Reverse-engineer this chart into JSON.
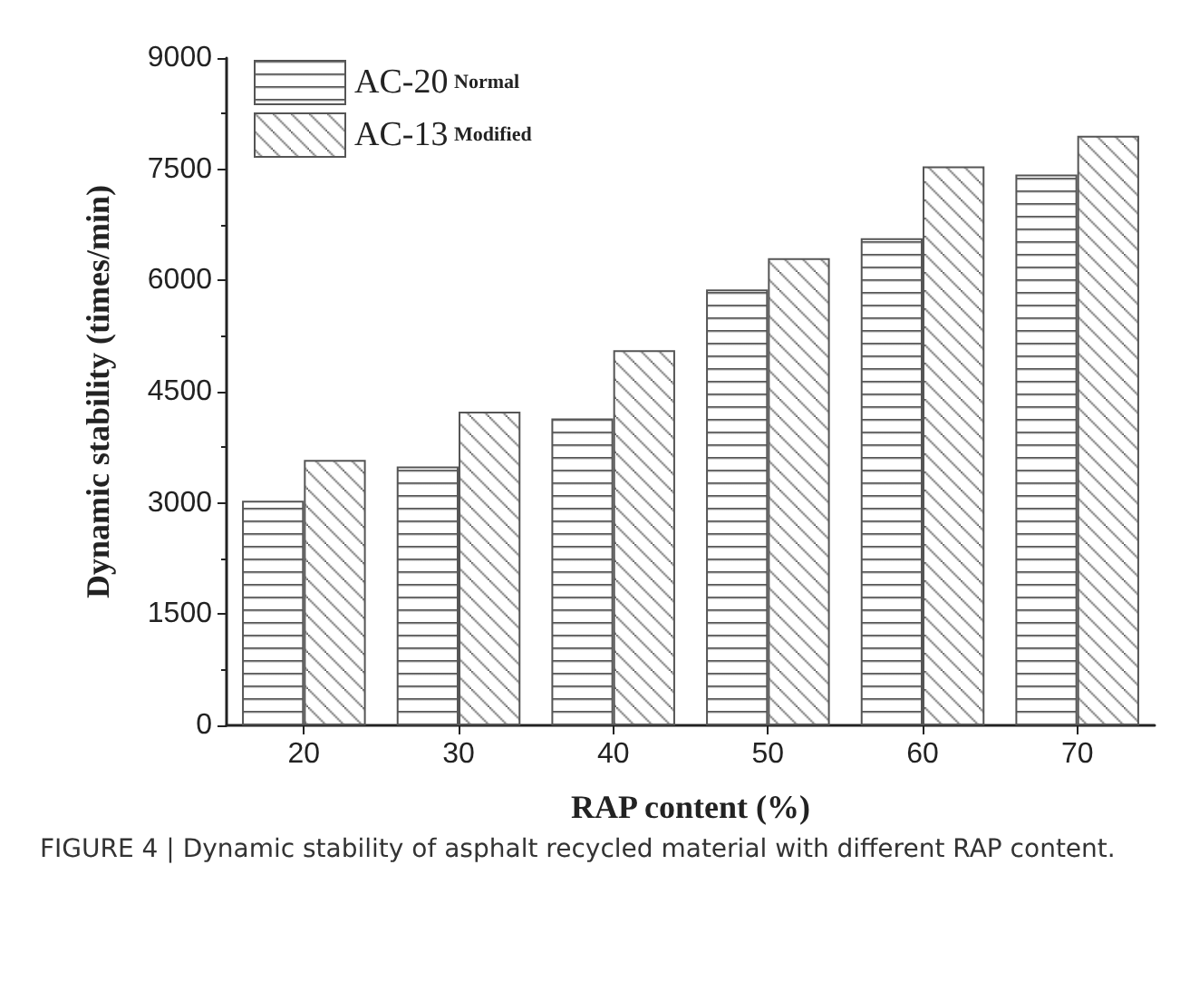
{
  "chart_data": {
    "type": "bar",
    "xlabel": "RAP content (%)",
    "ylabel": "Dynamic stability (times/min)",
    "categories": [
      "20",
      "30",
      "40",
      "50",
      "60",
      "70"
    ],
    "series": [
      {
        "name": "AC-20 Normal",
        "color": "#555555",
        "values": [
          3030,
          3490,
          4140,
          5880,
          6570,
          7430
        ]
      },
      {
        "name": "AC-13 Modified",
        "color": "#555555",
        "values": [
          3580,
          4230,
          5060,
          6300,
          7540,
          7950
        ]
      }
    ],
    "ylim": [
      0,
      9000
    ],
    "yticks": [
      0,
      1500,
      3000,
      4500,
      6000,
      7500,
      9000
    ],
    "legend": "top left",
    "grid": false,
    "annotations": [
      "FIGURE 4 | Dynamic stability of asphalt recycled material with different RAP content."
    ]
  }
}
